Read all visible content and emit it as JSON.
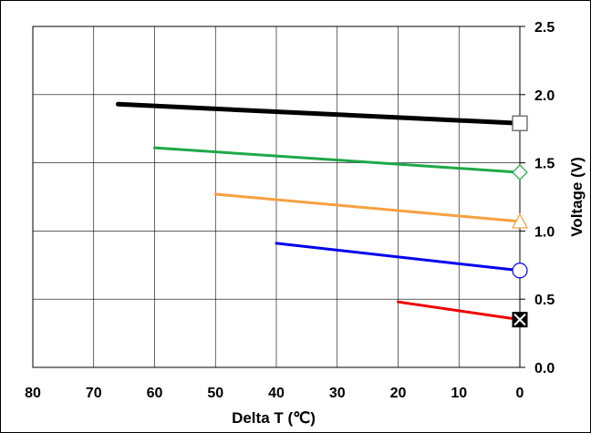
{
  "chart_data": {
    "type": "line",
    "title": "",
    "xlabel": "Delta T (℃)",
    "ylabel": "Voltage (V)",
    "x_reversed": true,
    "xlim": [
      80,
      0
    ],
    "ylim": [
      0.0,
      2.5
    ],
    "x_ticks": [
      "80",
      "70",
      "60",
      "50",
      "40",
      "30",
      "20",
      "10",
      "0"
    ],
    "y_ticks": [
      "0.0",
      "0.5",
      "1.0",
      "1.5",
      "2.0",
      "2.5"
    ],
    "y_axis_position": "right",
    "grid": true,
    "legend": "none",
    "series": [
      {
        "color": "#000000",
        "marker": "square",
        "x": [
          66,
          0
        ],
        "y": [
          1.93,
          1.79
        ]
      },
      {
        "color": "#1fa848",
        "marker": "diamond",
        "x": [
          60,
          0
        ],
        "y": [
          1.61,
          1.43
        ]
      },
      {
        "color": "#f7a040",
        "marker": "triangle",
        "x": [
          50,
          0
        ],
        "y": [
          1.27,
          1.07
        ]
      },
      {
        "color": "#0000ee",
        "marker": "circle",
        "x": [
          40,
          0
        ],
        "y": [
          0.91,
          0.71
        ]
      },
      {
        "color": "#ee0000",
        "marker": "x-square",
        "x": [
          20,
          0
        ],
        "y": [
          0.48,
          0.35
        ]
      }
    ]
  }
}
